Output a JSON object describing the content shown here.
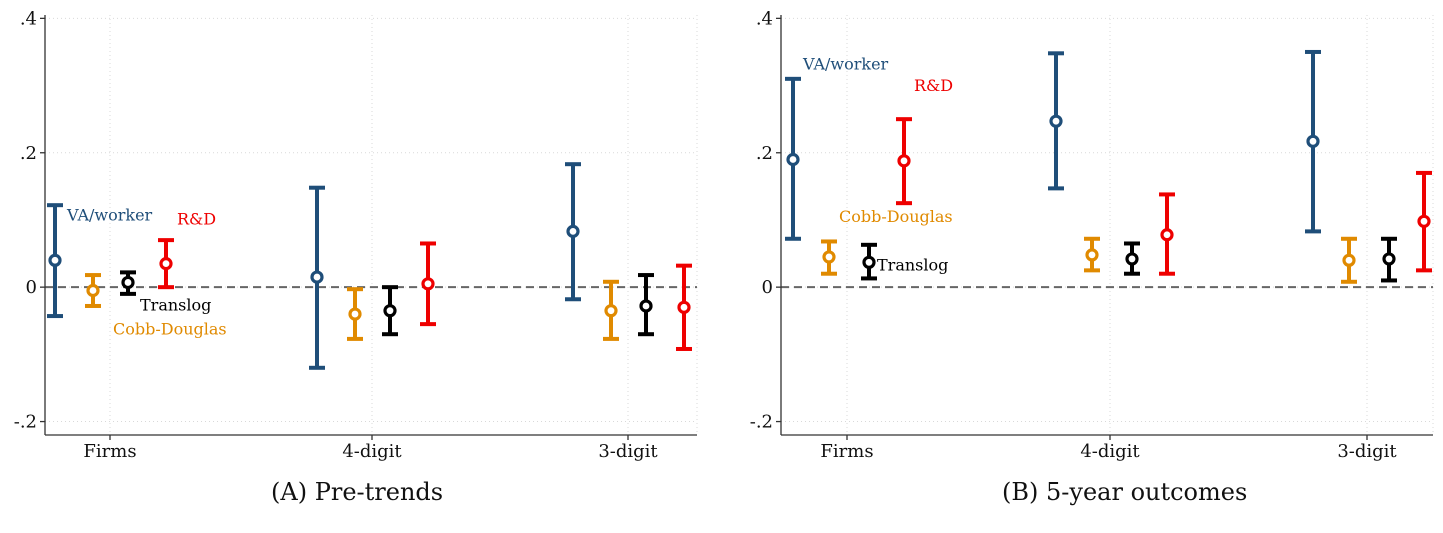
{
  "captions": [
    {
      "label": "(A)",
      "text": "Pre-trends"
    },
    {
      "label": "(B)",
      "text": "5-year outcomes"
    }
  ],
  "colors": {
    "va_worker": "#1f4e79",
    "cobb_douglas": "#e08a00",
    "translog": "#000000",
    "rd": "#ee0000",
    "grid": "#d9d9d9",
    "zero_line": "#666666",
    "axis": "#333333"
  },
  "chart_data": [
    {
      "type": "scatter",
      "title": "Pre-trends",
      "xlabel": "",
      "ylabel": "",
      "categories": [
        "Firms",
        "4-digit",
        "3-digit"
      ],
      "yticks": [
        -0.2,
        0,
        0.2,
        0.4
      ],
      "ytick_labels": [
        "-.2",
        "0",
        ".2",
        ".4"
      ],
      "ylim": [
        -0.22,
        0.405
      ],
      "grid": true,
      "zero_line": "dashed",
      "series": [
        {
          "name": "VA/worker",
          "color_key": "va_worker",
          "values": [
            0.04,
            0.015,
            0.083
          ],
          "ci_low": [
            -0.043,
            -0.12,
            -0.018
          ],
          "ci_high": [
            0.122,
            0.148,
            0.183
          ]
        },
        {
          "name": "Cobb-Douglas",
          "color_key": "cobb_douglas",
          "values": [
            -0.005,
            -0.04,
            -0.035
          ],
          "ci_low": [
            -0.028,
            -0.077,
            -0.077
          ],
          "ci_high": [
            0.018,
            -0.003,
            0.008
          ]
        },
        {
          "name": "Translog",
          "color_key": "translog",
          "values": [
            0.007,
            -0.035,
            -0.028
          ],
          "ci_low": [
            -0.01,
            -0.07,
            -0.07
          ],
          "ci_high": [
            0.022,
            0.0,
            0.018
          ]
        },
        {
          "name": "R&D",
          "color_key": "rd",
          "values": [
            0.035,
            0.005,
            -0.03
          ],
          "ci_low": [
            0.0,
            -0.055,
            -0.092
          ],
          "ci_high": [
            0.07,
            0.065,
            0.032
          ]
        }
      ]
    },
    {
      "type": "scatter",
      "title": "5-year outcomes",
      "xlabel": "",
      "ylabel": "",
      "categories": [
        "Firms",
        "4-digit",
        "3-digit"
      ],
      "yticks": [
        -0.2,
        0,
        0.2,
        0.4
      ],
      "ytick_labels": [
        "-.2",
        "0",
        ".2",
        ".4"
      ],
      "ylim": [
        -0.22,
        0.405
      ],
      "grid": true,
      "zero_line": "dashed",
      "series": [
        {
          "name": "VA/worker",
          "color_key": "va_worker",
          "values": [
            0.19,
            0.247,
            0.217
          ],
          "ci_low": [
            0.072,
            0.147,
            0.083
          ],
          "ci_high": [
            0.31,
            0.348,
            0.35
          ]
        },
        {
          "name": "Cobb-Douglas",
          "color_key": "cobb_douglas",
          "values": [
            0.045,
            0.048,
            0.04
          ],
          "ci_low": [
            0.02,
            0.025,
            0.008
          ],
          "ci_high": [
            0.068,
            0.072,
            0.072
          ]
        },
        {
          "name": "Translog",
          "color_key": "translog",
          "values": [
            0.037,
            0.042,
            0.042
          ],
          "ci_low": [
            0.013,
            0.02,
            0.01
          ],
          "ci_high": [
            0.063,
            0.065,
            0.072
          ]
        },
        {
          "name": "R&D",
          "color_key": "rd",
          "values": [
            0.188,
            0.078,
            0.098
          ],
          "ci_low": [
            0.125,
            0.02,
            0.025
          ],
          "ci_high": [
            0.25,
            0.138,
            0.17
          ]
        }
      ]
    }
  ]
}
